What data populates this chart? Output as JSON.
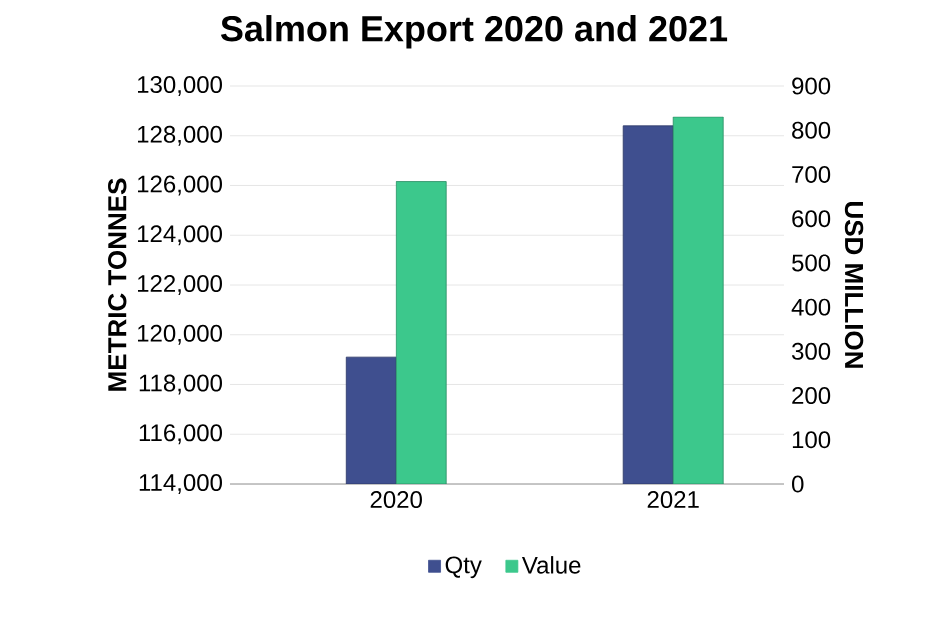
{
  "chart_data": {
    "type": "bar",
    "title": "Salmon Export 2020 and 2021",
    "ylabel": "METRIC TONNES",
    "y2label": "USD MILLION",
    "categories": [
      "2020",
      "2021"
    ],
    "series": [
      {
        "name": "Qty",
        "color": "#3f4f8f",
        "values": [
          119100,
          128400
        ]
      },
      {
        "name": "Value",
        "color": "#3cc88c",
        "values": [
          684,
          830
        ],
        "axis": "y2"
      }
    ],
    "ylim": [
      114000,
      130000
    ],
    "yticks": [
      {
        "value": 114000,
        "label": "114,000"
      },
      {
        "value": 116000,
        "label": "116,000"
      },
      {
        "value": 118000,
        "label": "118,000"
      },
      {
        "value": 120000,
        "label": "120,000"
      },
      {
        "value": 122000,
        "label": "122,000"
      },
      {
        "value": 124000,
        "label": "124,000"
      },
      {
        "value": 126000,
        "label": "126,000"
      },
      {
        "value": 128000,
        "label": "128,000"
      },
      {
        "value": 130000,
        "label": "130,000"
      }
    ],
    "y2lim": [
      0,
      900
    ],
    "y2ticks": [
      0,
      100,
      200,
      300,
      400,
      500,
      600,
      700,
      800,
      900
    ],
    "grid": "y",
    "legend": "bottom"
  }
}
